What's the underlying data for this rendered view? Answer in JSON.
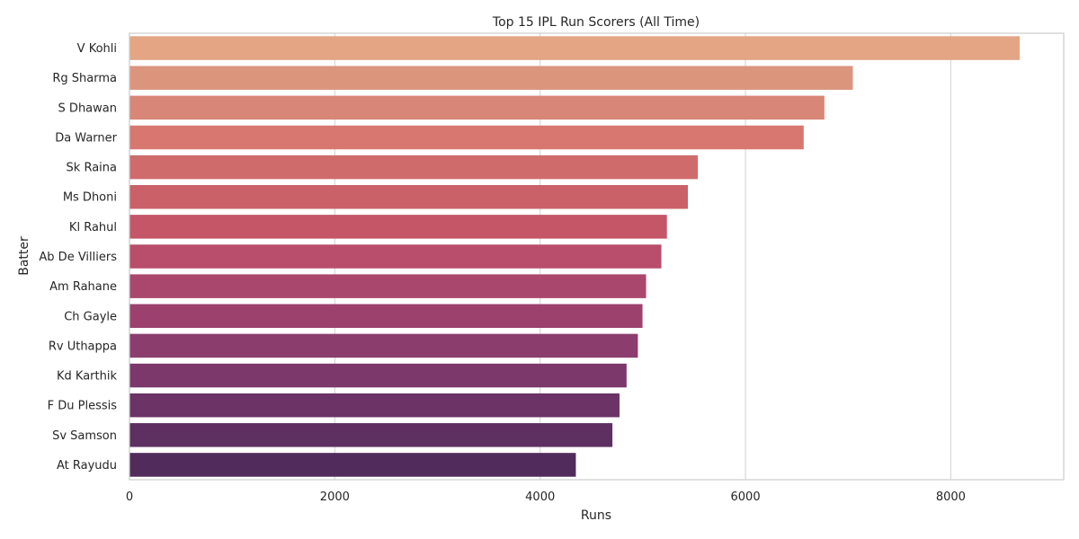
{
  "chart_data": {
    "type": "bar",
    "orientation": "horizontal",
    "title": "Top 15 IPL Run Scorers (All Time)",
    "xlabel": "Runs",
    "ylabel": "Batter",
    "xlim": [
      0,
      9100
    ],
    "xticks": [
      0,
      2000,
      4000,
      6000,
      8000
    ],
    "xtick_labels": [
      "0",
      "2000",
      "4000",
      "6000",
      "8000"
    ],
    "grid": "vertical",
    "legend": "none",
    "categories": [
      "V Kohli",
      "Rg Sharma",
      "S Dhawan",
      "Da Warner",
      "Sk Raina",
      "Ms Dhoni",
      "Kl Rahul",
      "Ab De Villiers",
      "Am Rahane",
      "Ch Gayle",
      "Rv Uthappa",
      "Kd Karthik",
      "F Du Plessis",
      "Sv Samson",
      "At Rayudu"
    ],
    "values": [
      8671,
      7046,
      6769,
      6567,
      5536,
      5439,
      5235,
      5181,
      5032,
      4997,
      4952,
      4842,
      4773,
      4704,
      4348
    ],
    "colors": [
      "#e3a584",
      "#db957d",
      "#d88677",
      "#d77770",
      "#d06b6b",
      "#ca6169",
      "#c45668",
      "#b84e6b",
      "#aa476c",
      "#9c416e",
      "#8b3d6d",
      "#7c386b",
      "#6b3366",
      "#5e2f61",
      "#512b5c"
    ]
  }
}
